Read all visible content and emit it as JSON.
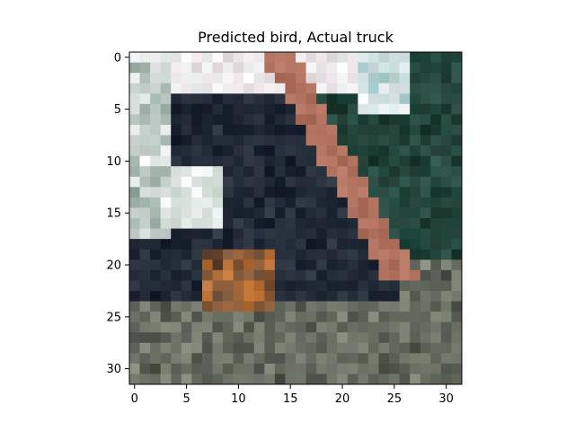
{
  "figure": {
    "title": "Predicted bird, Actual truck"
  },
  "chart_data": {
    "type": "heatmap",
    "title": "Predicted bird, Actual truck",
    "grid_size": 32,
    "xlim": [
      -0.5,
      31.5
    ],
    "ylim": [
      31.5,
      -0.5
    ],
    "x_ticks": [
      0,
      5,
      10,
      15,
      20,
      25,
      30
    ],
    "y_ticks": [
      0,
      5,
      10,
      15,
      20,
      25,
      30
    ],
    "x_tick_labels": [
      "0",
      "5",
      "10",
      "15",
      "20",
      "25",
      "30"
    ],
    "y_tick_labels": [
      "0",
      "5",
      "10",
      "15",
      "20",
      "25",
      "30"
    ],
    "grid": false
  },
  "image": {
    "description_colors": {
      "sky": "#f2f4f5",
      "dark_body": "#1a2130",
      "rust_stripe": "#b0705e",
      "foliage": "#1f3a30",
      "orange_patch": "#c87a3a",
      "ground": "#4a5048"
    }
  }
}
